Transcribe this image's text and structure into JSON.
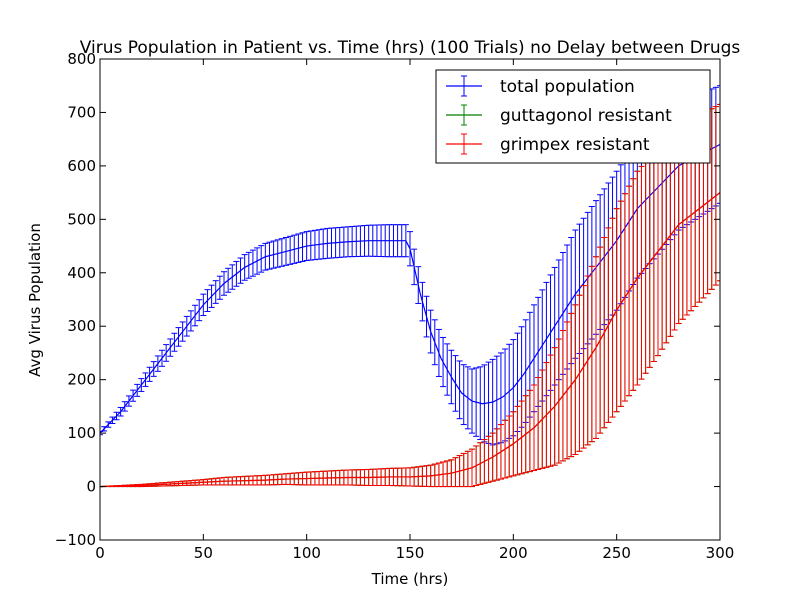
{
  "chart_data": {
    "type": "line",
    "title": "Virus Population in Patient vs. Time (hrs) (100 Trials) no Delay between Drugs",
    "xlabel": "Time (hrs)",
    "ylabel": "Avg Virus Population",
    "xlim": [
      0,
      300
    ],
    "ylim": [
      -100,
      800
    ],
    "xticks": [
      0,
      50,
      100,
      150,
      200,
      250,
      300
    ],
    "yticks": [
      -100,
      0,
      100,
      200,
      300,
      400,
      500,
      600,
      700,
      800
    ],
    "grid": false,
    "legend_position": "upper-right",
    "error_bars": true,
    "series": [
      {
        "name": "total population",
        "color": "#0000ff",
        "x": [
          0,
          10,
          20,
          30,
          40,
          50,
          60,
          70,
          80,
          90,
          100,
          110,
          120,
          130,
          140,
          148,
          150,
          155,
          160,
          165,
          170,
          175,
          180,
          185,
          190,
          195,
          200,
          205,
          210,
          220,
          230,
          240,
          250,
          260,
          270,
          280,
          290,
          300
        ],
        "y": [
          100,
          140,
          190,
          240,
          290,
          340,
          380,
          410,
          430,
          440,
          450,
          455,
          458,
          460,
          460,
          460,
          445,
          360,
          290,
          240,
          205,
          175,
          160,
          155,
          158,
          168,
          185,
          210,
          240,
          300,
          360,
          410,
          460,
          520,
          560,
          600,
          620,
          640
        ],
        "err": [
          3,
          8,
          12,
          15,
          18,
          20,
          22,
          24,
          25,
          26,
          27,
          28,
          28,
          29,
          30,
          30,
          32,
          35,
          40,
          45,
          50,
          55,
          60,
          70,
          80,
          85,
          90,
          95,
          100,
          110,
          120,
          125,
          130,
          130,
          125,
          120,
          115,
          110
        ]
      },
      {
        "name": "guttagonol resistant",
        "color": "#008000",
        "x": [
          0,
          10,
          20,
          30,
          40,
          50,
          60,
          70,
          80,
          90,
          100,
          110,
          120,
          130,
          140,
          150,
          160,
          170,
          180,
          190,
          200,
          210,
          220,
          230,
          240,
          250,
          260,
          270,
          280,
          290,
          300
        ],
        "y": [
          0,
          1,
          2,
          4,
          6,
          8,
          10,
          11,
          12,
          14,
          15,
          16,
          17,
          17,
          18,
          18,
          20,
          25,
          35,
          55,
          80,
          110,
          150,
          200,
          260,
          330,
          390,
          440,
          490,
          520,
          550
        ],
        "err": [
          0,
          1,
          2,
          3,
          4,
          5,
          7,
          8,
          9,
          10,
          12,
          13,
          14,
          15,
          16,
          17,
          20,
          25,
          35,
          45,
          60,
          80,
          110,
          140,
          170,
          190,
          200,
          195,
          185,
          175,
          165
        ]
      },
      {
        "name": "grimpex resistant",
        "color": "#ff0000",
        "x": [
          0,
          10,
          20,
          30,
          40,
          50,
          60,
          70,
          80,
          90,
          100,
          110,
          120,
          130,
          140,
          150,
          160,
          170,
          180,
          190,
          200,
          210,
          220,
          230,
          240,
          250,
          260,
          270,
          280,
          290,
          300
        ],
        "y": [
          0,
          1,
          2,
          4,
          6,
          8,
          10,
          11,
          12,
          14,
          15,
          16,
          17,
          17,
          18,
          18,
          20,
          25,
          35,
          55,
          80,
          110,
          150,
          200,
          260,
          330,
          390,
          440,
          490,
          520,
          550
        ],
        "err": [
          0,
          1,
          2,
          3,
          4,
          5,
          7,
          8,
          9,
          10,
          12,
          13,
          14,
          15,
          16,
          17,
          20,
          25,
          35,
          45,
          60,
          80,
          110,
          140,
          170,
          190,
          200,
          195,
          185,
          175,
          165
        ]
      }
    ]
  }
}
